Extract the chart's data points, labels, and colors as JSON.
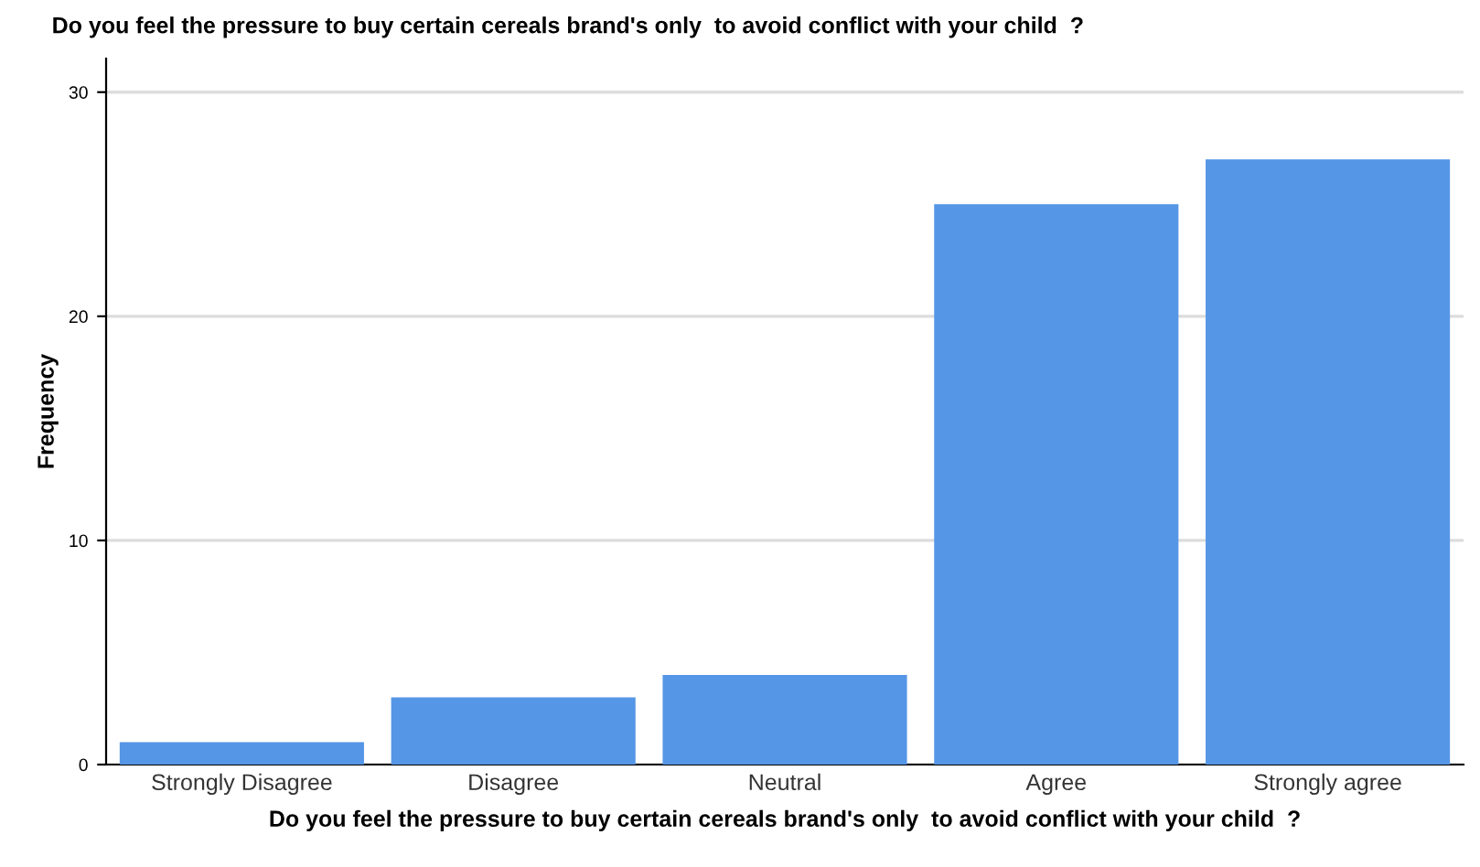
{
  "chart_data": {
    "type": "bar",
    "title": "Do you feel the pressure to buy certain cereals brand's only  to avoid conflict with your child  ?",
    "xlabel": "Do you feel the pressure to buy certain cereals brand's only  to avoid conflict with your child  ?",
    "ylabel": "Frequency",
    "categories": [
      "Strongly Disagree",
      "Disagree",
      "Neutral",
      "Agree",
      "Strongly agree"
    ],
    "values": [
      1,
      3,
      4,
      25,
      27
    ],
    "color": "#5596e6",
    "ylim": [
      0,
      31.5
    ],
    "yticks": [
      0,
      10,
      20,
      30
    ],
    "grid": "y"
  }
}
